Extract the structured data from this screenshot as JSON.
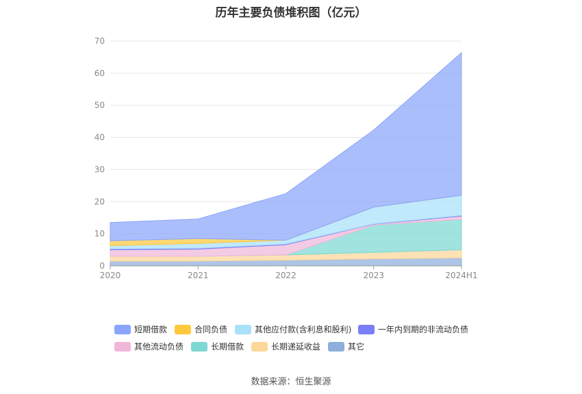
{
  "chart_data": {
    "type": "area",
    "title": "历年主要负债堆积图（亿元）",
    "categories": [
      "2020",
      "2021",
      "2022",
      "2023",
      "2024H1"
    ],
    "ylim": [
      0,
      70
    ],
    "yticks": [
      0,
      10,
      20,
      30,
      40,
      50,
      60,
      70
    ],
    "grid": true,
    "legend_position": "bottom",
    "stacked": true,
    "series": [
      {
        "name": "其它",
        "color": "#8eaedc",
        "values": [
          1.5,
          1.5,
          1.8,
          2.2,
          2.5
        ]
      },
      {
        "name": "长期递延收益",
        "color": "#fdd79a",
        "values": [
          1.5,
          1.5,
          1.6,
          2.0,
          2.5
        ]
      },
      {
        "name": "长期借款",
        "color": "#7dd8d3",
        "values": [
          0.0,
          0.0,
          0.0,
          8.5,
          9.5
        ]
      },
      {
        "name": "其他流动负债",
        "color": "#f0b7d9",
        "values": [
          2.0,
          2.2,
          3.2,
          0.3,
          1.0
        ]
      },
      {
        "name": "一年内到期的非流动负债",
        "color": "#7b7ff5",
        "values": [
          0.3,
          0.3,
          0.2,
          0.1,
          0.2
        ]
      },
      {
        "name": "其他应付款(含利息和股利)",
        "color": "#a9e1fb",
        "values": [
          1.0,
          1.5,
          1.2,
          5.2,
          6.3
        ]
      },
      {
        "name": "合同负债",
        "color": "#fdc93c",
        "values": [
          1.5,
          1.5,
          0.0,
          0.0,
          0.0
        ]
      },
      {
        "name": "短期借款",
        "color": "#8aa5fb",
        "values": [
          5.7,
          6.1,
          14.5,
          24.0,
          44.4
        ]
      }
    ],
    "legend_order": [
      "短期借款",
      "合同负债",
      "其他应付款(含利息和股利)",
      "一年内到期的非流动负债",
      "其他流动负债",
      "长期借款",
      "长期递延收益",
      "其它"
    ]
  },
  "source": "数据来源：恒生聚源"
}
